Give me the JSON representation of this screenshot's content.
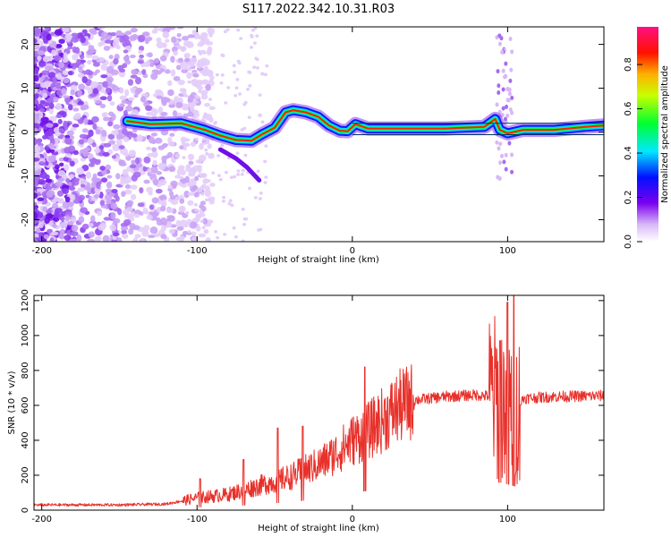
{
  "title": "S117.2022.342.10.31.R03",
  "chart_data": [
    {
      "type": "heatmap",
      "name": "spectrogram",
      "xlabel": "Height of straight line (km)",
      "ylabel": "Frequency (Hz)",
      "xlim": [
        -205,
        162
      ],
      "ylim": [
        -25,
        24
      ],
      "xticks": [
        -200,
        -100,
        0,
        100
      ],
      "yticks": [
        -20,
        -10,
        0,
        10,
        20
      ],
      "colorbar": {
        "label": "Normalized spectral amplitude",
        "range": [
          0,
          0.97
        ],
        "ticks": [
          0.0,
          0.2,
          0.4,
          0.6,
          0.8
        ],
        "colors": [
          "#ffffff",
          "#a020f0",
          "#0000ff",
          "#00ffff",
          "#00ff00",
          "#ffff00",
          "#ff0000",
          "#ff1493"
        ]
      },
      "ridge": {
        "x": [
          -145,
          -130,
          -110,
          -95,
          -85,
          -75,
          -65,
          -58,
          -50,
          -43,
          -38,
          -30,
          -22,
          -15,
          -8,
          -3,
          2,
          10,
          30,
          60,
          85,
          92,
          95,
          100,
          110,
          130,
          150,
          162
        ],
        "y": [
          2.5,
          1.8,
          2.0,
          0.5,
          -0.8,
          -1.8,
          -2.0,
          -0.5,
          1.0,
          4.5,
          5.0,
          4.5,
          3.5,
          1.5,
          0.3,
          0.2,
          1.8,
          0.8,
          0.8,
          0.8,
          1.2,
          3.0,
          0.5,
          -0.3,
          0.5,
          0.5,
          1.2,
          1.5
        ]
      },
      "branch": {
        "x": [
          -85,
          -75,
          -68,
          -60
        ],
        "y": [
          -4,
          -6,
          -8,
          -11
        ]
      }
    },
    {
      "type": "line",
      "name": "snr",
      "xlabel": "Height of straight line (km)",
      "ylabel": "SNR (10 * v/v)",
      "xlim": [
        -205,
        162
      ],
      "ylim": [
        0,
        1230
      ],
      "xticks": [
        -200,
        -100,
        0,
        100
      ],
      "yticks": [
        0,
        200,
        400,
        600,
        800,
        1000,
        1200
      ],
      "color": "#e8302a",
      "trend": {
        "x": [
          -205,
          -150,
          -120,
          -100,
          -80,
          -60,
          -40,
          -20,
          -10,
          0,
          10,
          20,
          30,
          40,
          60,
          80,
          90,
          95,
          100,
          105,
          110,
          130,
          162
        ],
        "y": [
          30,
          30,
          35,
          70,
          90,
          140,
          190,
          270,
          330,
          400,
          450,
          520,
          590,
          630,
          650,
          660,
          650,
          640,
          600,
          550,
          640,
          650,
          655
        ]
      },
      "spikes": [
        {
          "x": -98,
          "y": 180
        },
        {
          "x": -70,
          "y": 290
        },
        {
          "x": -48,
          "y": 470
        },
        {
          "x": -32,
          "y": 480
        },
        {
          "x": 8,
          "y": 820
        },
        {
          "x": 95,
          "y": 970
        },
        {
          "x": 100,
          "y": 1190
        },
        {
          "x": 104,
          "y": 1230
        }
      ]
    }
  ]
}
